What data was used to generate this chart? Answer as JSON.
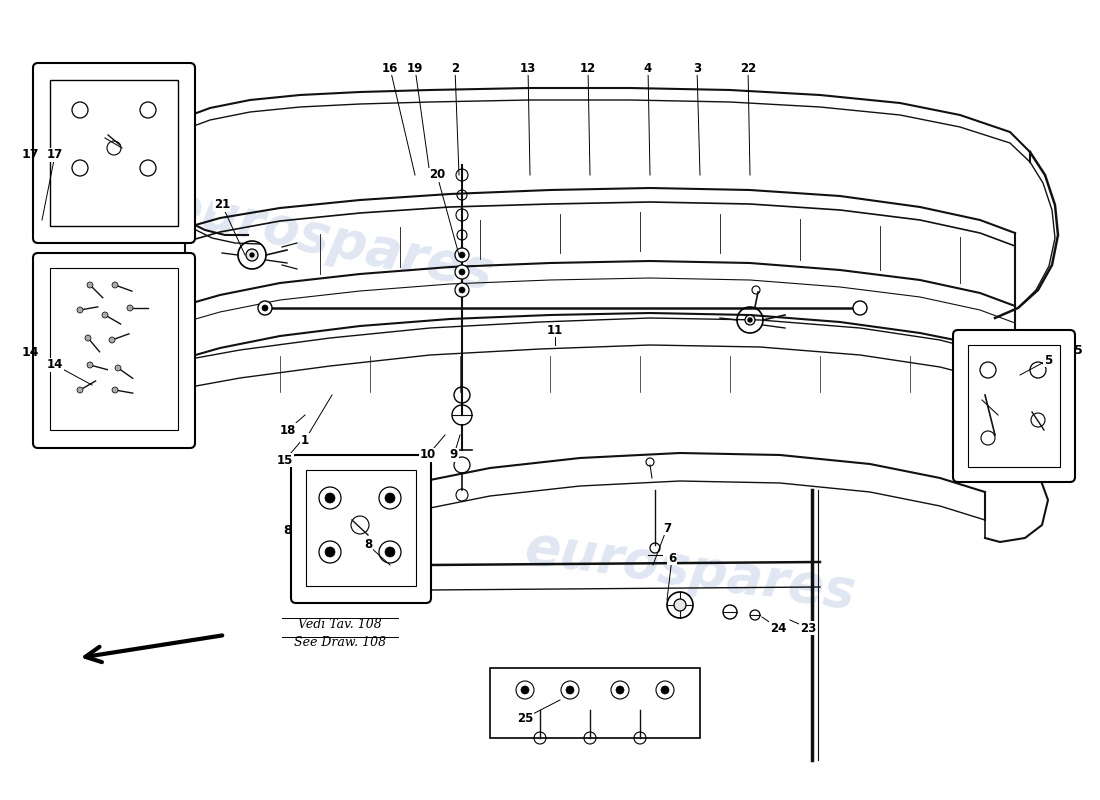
{
  "bg_color": "#ffffff",
  "line_color": "#111111",
  "watermark_color": "#c8d4e8",
  "watermark_text": "eurospares",
  "ref_line1": "Vedi Tav. 108",
  "ref_line2": "See Draw. 108",
  "callouts": [
    [
      1,
      305,
      440,
      332,
      395
    ],
    [
      2,
      455,
      68,
      459,
      175
    ],
    [
      3,
      697,
      68,
      700,
      175
    ],
    [
      4,
      648,
      68,
      650,
      175
    ],
    [
      5,
      1048,
      360,
      1020,
      375
    ],
    [
      6,
      672,
      558,
      667,
      600
    ],
    [
      7,
      667,
      528,
      653,
      565
    ],
    [
      8,
      368,
      545,
      390,
      565
    ],
    [
      9,
      454,
      455,
      460,
      435
    ],
    [
      10,
      428,
      455,
      445,
      435
    ],
    [
      11,
      555,
      330,
      555,
      345
    ],
    [
      12,
      588,
      68,
      590,
      175
    ],
    [
      13,
      528,
      68,
      530,
      175
    ],
    [
      14,
      55,
      365,
      92,
      385
    ],
    [
      15,
      285,
      460,
      302,
      440
    ],
    [
      16,
      390,
      68,
      415,
      175
    ],
    [
      17,
      55,
      155,
      42,
      220
    ],
    [
      18,
      288,
      430,
      305,
      415
    ],
    [
      19,
      415,
      68,
      430,
      175
    ],
    [
      20,
      437,
      175,
      459,
      255
    ],
    [
      21,
      222,
      205,
      245,
      255
    ],
    [
      22,
      748,
      68,
      750,
      175
    ],
    [
      23,
      808,
      628,
      790,
      620
    ],
    [
      24,
      778,
      628,
      762,
      617
    ],
    [
      25,
      525,
      718,
      560,
      700
    ]
  ]
}
